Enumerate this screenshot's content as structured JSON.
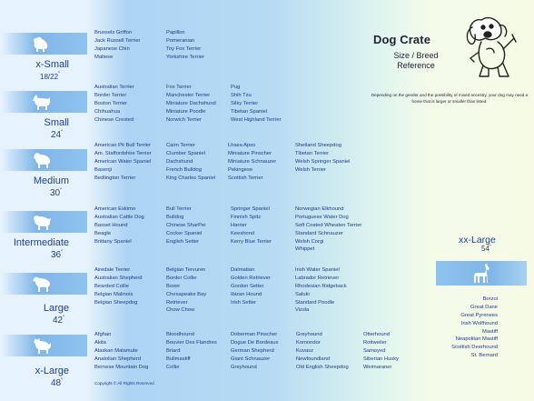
{
  "header": {
    "title": "Dog Crate",
    "subtitle_line1": "Size / Breed",
    "subtitle_line2": "Reference",
    "note": "Depending on the gender and the possibility of mixed ancestry, your dog may need a home that is larger or smaller than listed."
  },
  "sizes": [
    {
      "label": "x-Small",
      "dims": "18/22",
      "columns": [
        [
          "Brussels Griffon",
          "Jack Russell Terrier",
          "Japanese Chin",
          "Maltese"
        ],
        [
          "Papillon",
          "Pomeranian",
          "Toy Fox Terrier",
          "Yorkshire Terrier"
        ]
      ]
    },
    {
      "label": "Small",
      "dims": "24",
      "columns": [
        [
          "Australian Terrier",
          "Border Terrier",
          "Boston Terrier",
          "Chihuahua",
          "Chinese Crested"
        ],
        [
          "Fox Terrier",
          "Manchester Terrier",
          "Miniature Dachshund",
          "Miniature Poodle",
          "Norwich Terrier"
        ],
        [
          "Pug",
          "Shih Tzu",
          "Silky Terrier",
          "Tibetan Spaniel",
          "West Highland Terrier"
        ]
      ]
    },
    {
      "label": "Medium",
      "dims": "30",
      "columns": [
        [
          "American Pit Bull Terrier",
          "Am. Staffordshire Terrier",
          "American Water Spaniel",
          "Basenji",
          "Bedlington Terrier"
        ],
        [
          "Cairn Terrier",
          "Clumber Spaniel",
          "Dachshund",
          "French Bulldog",
          "King Charles Spaniel"
        ],
        [
          "Lhasa Apso",
          "Miniature Pinscher",
          "Miniature Schnauzer",
          "Pekingese",
          "Scottish Terrier"
        ],
        [
          "Shetland Sheepdog",
          "Tibetan Terrier",
          "Welsh Springer Spaniel",
          "Welsh Terrier"
        ]
      ]
    },
    {
      "label": "Intermediate",
      "dims": "36",
      "columns": [
        [
          "American Eskimo",
          "Australian Cattle Dog",
          "Basset Hound",
          "Beagle",
          "Brittany Spaniel"
        ],
        [
          "Bull Terrier",
          "Bulldog",
          "Chinese SharPei",
          "Cocker Spaniel",
          "English Setter"
        ],
        [
          "Springer Spaniel",
          "Finnish Spitz",
          "Harrier",
          "Keeshond",
          "Kerry Blue Terrier"
        ],
        [
          "Norwegian Elkhound",
          "Portuguese Water Dog",
          "Soft Coated Wheaten Terrier",
          "Standard Schnauzer",
          "Welsh Corgi",
          "Whippet"
        ]
      ]
    },
    {
      "label": "Large",
      "dims": "42",
      "columns": [
        [
          "Airedale Terrier",
          "Australian Shepherd",
          "Bearded Collie",
          "Belgian Malinois",
          "Belgian Sheepdog"
        ],
        [
          "Belgian Tervuren",
          "Border Collie",
          "Boxer",
          "Chesapeake Bay",
          "Retriever",
          "Chow Chow"
        ],
        [
          "Dalmatian",
          "Golden Retriever",
          "Gordon Setter",
          "Ibizan Hound",
          "Irish Setter"
        ],
        [
          "Irish Water Spaniel",
          "Labrador Retriever",
          "Rhodesian Ridgeback",
          "Saluki",
          "Standard Poodle",
          "Vizsla"
        ]
      ]
    },
    {
      "label": "x-Large",
      "dims": "48",
      "columns": [
        [
          "Afghan",
          "Akita",
          "Alaskan Malamute",
          "Anatolian Shepherd",
          "Bernese Mountain Dog"
        ],
        [
          "Bloodhound",
          "Bouvier Des Flandres",
          "Briard",
          "Bullmastiff",
          "Collie"
        ],
        [
          "Doberman Pinscher",
          "Dogue De Bordeaux",
          "German Shepherd",
          "Giant Schnauzer",
          "Greyhound"
        ],
        [
          "Greyhound",
          "Komondor",
          "Kuvasz",
          "Newfoundland",
          "Old English Sheepdog"
        ],
        [
          "Otterhound",
          "Rottweiler",
          "Samoyed",
          "Siberian Husky",
          "Weimaraner"
        ]
      ]
    }
  ],
  "xx_large": {
    "label": "xx-Large",
    "dims": "54",
    "breeds": [
      "Borzoi",
      "Great Dane",
      "Great Pyrenees",
      "Irish Wolfhound",
      "Mastiff",
      "Neapolitan Mastiff",
      "Scottish Deerhound",
      "St. Bernard"
    ]
  },
  "footer": {
    "copyright": "Copyright © All Rights Reserved"
  },
  "icons": [
    "cartoon-dog-icon",
    "small-dog-silhouette-icon",
    "terrier-silhouette-icon",
    "medium-dog-silhouette-icon",
    "intermediate-dog-silhouette-icon",
    "large-dog-silhouette-icon",
    "xlarge-dog-silhouette-icon",
    "great-dane-silhouette-icon"
  ],
  "colors": {
    "text_blue": "#1c3c8a",
    "box_blue": "#7fb6e8"
  }
}
